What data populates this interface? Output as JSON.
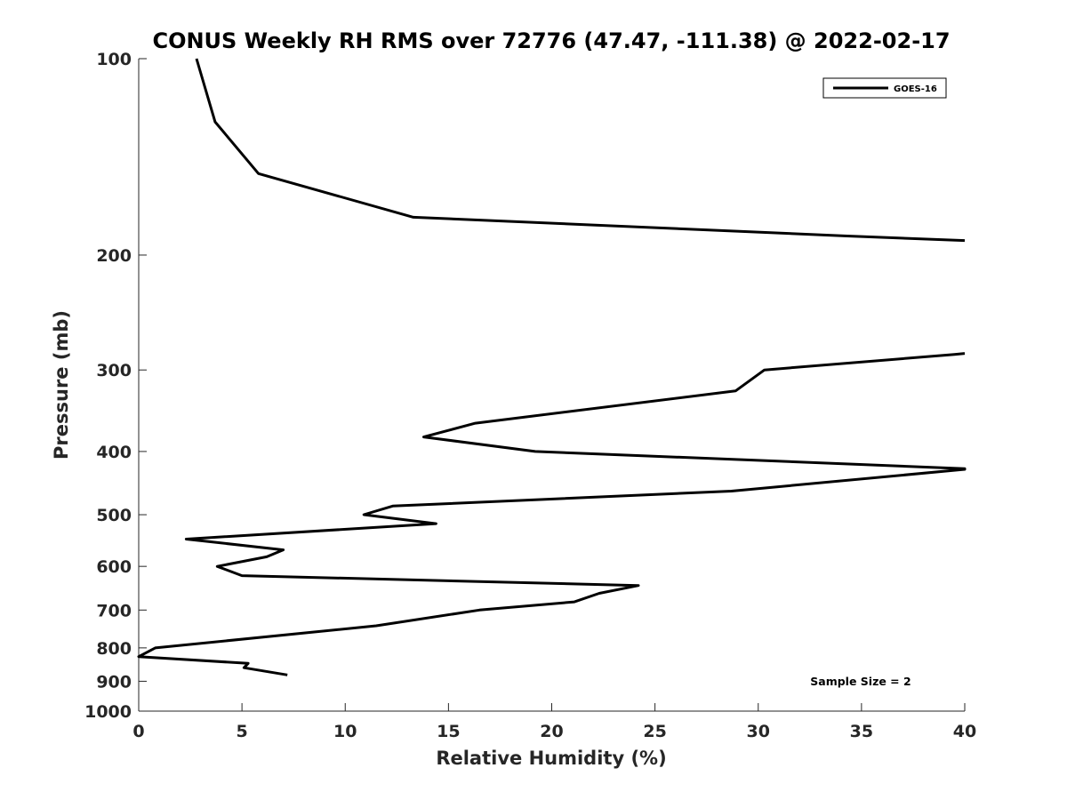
{
  "chart_data": {
    "type": "line",
    "title": "CONUS Weekly RH RMS over 72776 (47.47, -111.38) @ 2022-02-17",
    "xlabel": "Relative Humidity (%)",
    "ylabel": "Pressure (mb)",
    "xlim": [
      0,
      40
    ],
    "ylim": [
      100,
      1000
    ],
    "y_scale": "log",
    "y_reversed": true,
    "x_ticks": [
      0,
      5,
      10,
      15,
      20,
      25,
      30,
      35,
      40
    ],
    "y_ticks": [
      100,
      200,
      300,
      400,
      500,
      600,
      700,
      800,
      900,
      1000
    ],
    "grid": false,
    "legend_position": "top-right",
    "annotation": "Sample Size = 2",
    "series": [
      {
        "name": "GOES-16",
        "color": "#000000",
        "points": [
          [
            2.8,
            100
          ],
          [
            3.7,
            125
          ],
          [
            5.8,
            150
          ],
          [
            13.3,
            175
          ],
          [
            34.3,
            187
          ],
          [
            40.0,
            190
          ],
          null,
          [
            40.0,
            283
          ],
          [
            39.5,
            284
          ],
          [
            30.3,
            300
          ],
          [
            28.9,
            323
          ],
          [
            16.3,
            362
          ],
          [
            13.8,
            380
          ],
          [
            19.2,
            400
          ],
          [
            40.0,
            425
          ],
          [
            40.0,
            426
          ],
          [
            28.7,
            460
          ],
          [
            12.3,
            485
          ],
          [
            10.9,
            500
          ],
          [
            14.4,
            516
          ],
          [
            2.3,
            545
          ],
          [
            7.0,
            566
          ],
          [
            6.2,
            580
          ],
          [
            3.8,
            600
          ],
          [
            5.0,
            620
          ],
          [
            24.2,
            642
          ],
          [
            22.3,
            660
          ],
          [
            21.1,
            680
          ],
          [
            16.5,
            700
          ],
          [
            11.5,
            740
          ],
          [
            0.8,
            800
          ],
          [
            0.0,
            825
          ],
          [
            5.3,
            845
          ],
          [
            5.1,
            858
          ],
          [
            7.2,
            880
          ]
        ]
      }
    ]
  }
}
